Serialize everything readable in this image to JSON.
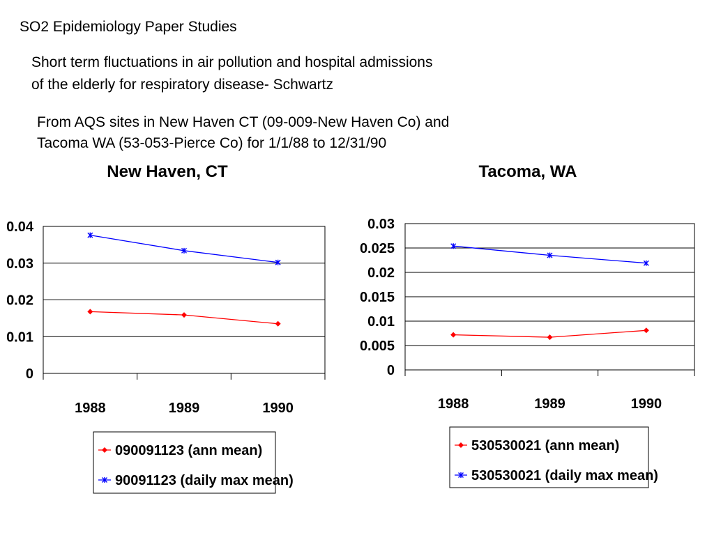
{
  "slide": {
    "title": "SO2 Epidemiology Paper Studies",
    "subtitle_line1": "Short term fluctuations in air pollution and hospital admissions",
    "subtitle_line2": "of the elderly for respiratory disease- Schwartz",
    "source_line1": "From AQS sites in New Haven CT (09-009-New Haven Co) and",
    "source_line2": "Tacoma WA (53-053-Pierce Co) for 1/1/88 to 12/31/90"
  },
  "chart_data": [
    {
      "type": "line",
      "title": "New Haven, CT",
      "categories": [
        "1988",
        "1989",
        "1990"
      ],
      "ylim": [
        0,
        0.04
      ],
      "yticks": [
        "0",
        "0.01",
        "0.02",
        "0.03",
        "0.04"
      ],
      "grid": true,
      "legend_position": "bottom",
      "series": [
        {
          "name": "090091123 (ann mean)",
          "color": "#ff0000",
          "marker": "diamond",
          "values": [
            0.0168,
            0.0159,
            0.0135
          ]
        },
        {
          "name": "90091123 (daily max mean)",
          "color": "#0000ff",
          "marker": "star",
          "values": [
            0.0376,
            0.0334,
            0.0302
          ]
        }
      ]
    },
    {
      "type": "line",
      "title": "Tacoma, WA",
      "categories": [
        "1988",
        "1989",
        "1990"
      ],
      "ylim": [
        0,
        0.03
      ],
      "yticks": [
        "0",
        "0.005",
        "0.01",
        "0.015",
        "0.02",
        "0.025",
        "0.03"
      ],
      "grid": true,
      "legend_position": "bottom",
      "series": [
        {
          "name": "530530021 (ann mean)",
          "color": "#ff0000",
          "marker": "diamond",
          "values": [
            0.0072,
            0.0067,
            0.0081
          ]
        },
        {
          "name": "530530021 (daily max mean)",
          "color": "#0000ff",
          "marker": "star",
          "values": [
            0.0254,
            0.0235,
            0.0219
          ]
        }
      ]
    }
  ]
}
